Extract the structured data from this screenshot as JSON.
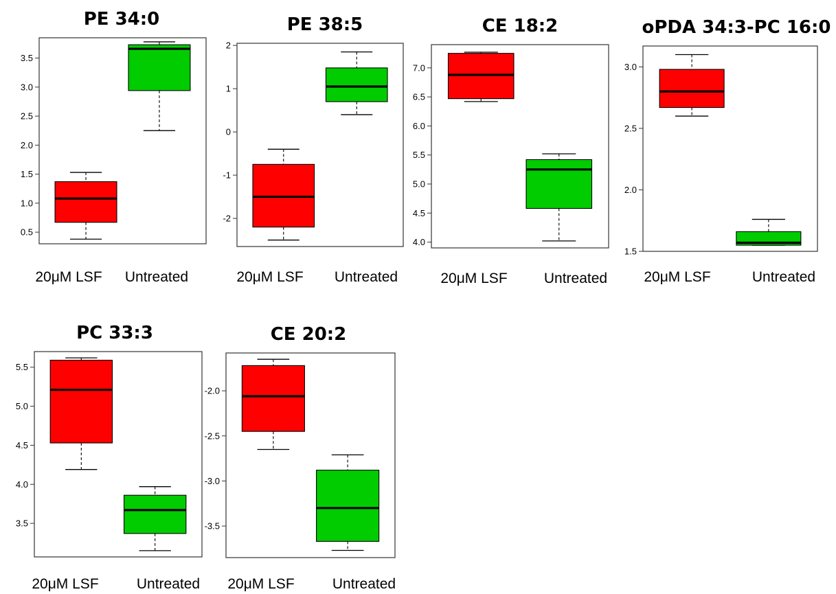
{
  "chart_data": [
    {
      "type": "box",
      "title": "PE 34:0",
      "categories": [
        "20μM LSF",
        "Untreated"
      ],
      "ylim": [
        0.3,
        3.85
      ],
      "yticks": [
        0.5,
        1.0,
        1.5,
        2.0,
        2.5,
        3.0,
        3.5
      ],
      "ytick_labels": [
        "0.5",
        "1.0",
        "1.5",
        "2.0",
        "2.5",
        "3.0",
        "3.5"
      ],
      "boxes": [
        {
          "name": "20μM LSF",
          "min": 0.38,
          "q1": 0.67,
          "median": 1.08,
          "q3": 1.37,
          "max": 1.53,
          "color": "#ff0000"
        },
        {
          "name": "Untreated",
          "min": 2.25,
          "q1": 2.94,
          "median": 3.66,
          "q3": 3.73,
          "max": 3.78,
          "color": "#00cc00"
        }
      ]
    },
    {
      "type": "box",
      "title": "PE 38:5",
      "categories": [
        "20μM LSF",
        "Untreated"
      ],
      "ylim": [
        -2.65,
        2.05
      ],
      "yticks": [
        -2,
        -1,
        0,
        1,
        2
      ],
      "ytick_labels": [
        "-2",
        "-1",
        "0",
        "1",
        "2"
      ],
      "boxes": [
        {
          "name": "20μM LSF",
          "min": -2.5,
          "q1": -2.2,
          "median": -1.5,
          "q3": -0.75,
          "max": -0.4,
          "color": "#ff0000"
        },
        {
          "name": "Untreated",
          "min": 0.4,
          "q1": 0.7,
          "median": 1.05,
          "q3": 1.48,
          "max": 1.85,
          "color": "#00cc00"
        }
      ]
    },
    {
      "type": "box",
      "title": "CE 18:2",
      "categories": [
        "20μM LSF",
        "Untreated"
      ],
      "ylim": [
        3.9,
        7.4
      ],
      "yticks": [
        4.0,
        4.5,
        5.0,
        5.5,
        6.0,
        6.5,
        7.0
      ],
      "ytick_labels": [
        "4.0",
        "4.5",
        "5.0",
        "5.5",
        "6.0",
        "6.5",
        "7.0"
      ],
      "boxes": [
        {
          "name": "20μM LSF",
          "min": 6.42,
          "q1": 6.47,
          "median": 6.88,
          "q3": 7.25,
          "max": 7.27,
          "color": "#ff0000"
        },
        {
          "name": "Untreated",
          "min": 4.02,
          "q1": 4.58,
          "median": 5.25,
          "q3": 5.42,
          "max": 5.52,
          "color": "#00cc00"
        }
      ]
    },
    {
      "type": "box",
      "title": "oPDA 34:3-PC 16:0",
      "categories": [
        "20μM LSF",
        "Untreated"
      ],
      "ylim": [
        1.5,
        3.17
      ],
      "yticks": [
        1.5,
        2.0,
        2.5,
        3.0
      ],
      "ytick_labels": [
        "1.5",
        "2.0",
        "2.5",
        "3.0"
      ],
      "boxes": [
        {
          "name": "20μM LSF",
          "min": 2.6,
          "q1": 2.67,
          "median": 2.8,
          "q3": 2.98,
          "max": 3.1,
          "color": "#ff0000"
        },
        {
          "name": "Untreated",
          "min": 1.55,
          "q1": 1.55,
          "median": 1.57,
          "q3": 1.66,
          "max": 1.76,
          "color": "#00cc00"
        }
      ]
    },
    {
      "type": "box",
      "title": "PC 33:3",
      "categories": [
        "20μM LSF",
        "Untreated"
      ],
      "ylim": [
        3.07,
        5.7
      ],
      "yticks": [
        3.5,
        4.0,
        4.5,
        5.0,
        5.5
      ],
      "ytick_labels": [
        "3.5",
        "4.0",
        "4.5",
        "5.0",
        "5.5"
      ],
      "boxes": [
        {
          "name": "20μM LSF",
          "min": 4.19,
          "q1": 4.53,
          "median": 5.21,
          "q3": 5.59,
          "max": 5.62,
          "color": "#ff0000"
        },
        {
          "name": "Untreated",
          "min": 3.15,
          "q1": 3.37,
          "median": 3.67,
          "q3": 3.86,
          "max": 3.97,
          "color": "#00cc00"
        }
      ]
    },
    {
      "type": "box",
      "title": "CE 20:2",
      "categories": [
        "20μM LSF",
        "Untreated"
      ],
      "ylim": [
        -3.85,
        -1.58
      ],
      "yticks": [
        -3.5,
        -3.0,
        -2.5,
        -2.0
      ],
      "ytick_labels": [
        "-3.5",
        "-3.0",
        "-2.5",
        "-2.0"
      ],
      "boxes": [
        {
          "name": "20μM LSF",
          "min": -2.65,
          "q1": -2.45,
          "median": -2.06,
          "q3": -1.72,
          "max": -1.65,
          "color": "#ff0000"
        },
        {
          "name": "Untreated",
          "min": -3.77,
          "q1": -3.67,
          "median": -3.3,
          "q3": -2.88,
          "max": -2.71,
          "color": "#00cc00"
        }
      ]
    }
  ]
}
